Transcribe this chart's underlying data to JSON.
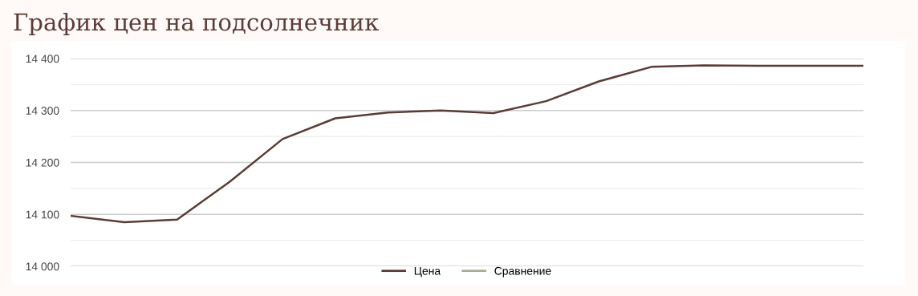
{
  "chart_data": {
    "type": "line",
    "title": "График цен на подсолнечник",
    "categories": [
      null,
      null,
      null,
      null,
      null,
      null,
      null,
      null,
      null,
      null,
      null,
      null,
      null,
      null,
      null,
      null
    ],
    "series": [
      {
        "name": "Цена",
        "color": "#5b3b35",
        "values": [
          14097,
          14085,
          14090,
          14163,
          14245,
          14285,
          14296,
          14300,
          14295,
          14318,
          14356,
          14384,
          14387,
          14386,
          14386,
          14386
        ]
      },
      {
        "name": "Сравнение",
        "color": "#a9a994",
        "values": [
          null,
          null,
          null,
          null,
          null,
          null,
          null,
          null,
          null,
          null,
          null,
          null,
          null,
          null,
          null,
          null
        ]
      }
    ],
    "ylim": [
      14000,
      14400
    ],
    "yticks": [
      {
        "value": 14000,
        "label": "14 000"
      },
      {
        "value": 14050,
        "label": null
      },
      {
        "value": 14100,
        "label": "14 100"
      },
      {
        "value": 14150,
        "label": null
      },
      {
        "value": 14200,
        "label": "14 200"
      },
      {
        "value": 14250,
        "label": null
      },
      {
        "value": 14300,
        "label": "14 300"
      },
      {
        "value": 14350,
        "label": null
      },
      {
        "value": 14400,
        "label": "14 400"
      }
    ],
    "grid": "y",
    "legend": "bottom",
    "marker": "none",
    "line_style": "solid"
  }
}
